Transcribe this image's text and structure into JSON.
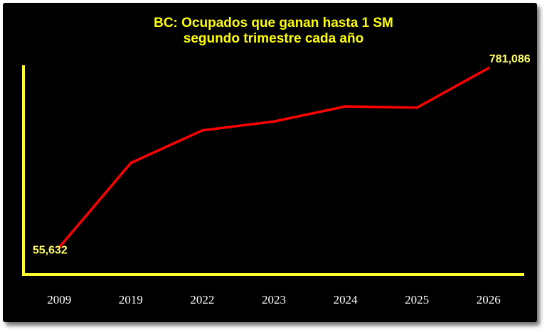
{
  "chart_data": {
    "type": "line",
    "title": "BC: Ocupados que ganan hasta 1 SM",
    "subtitle": "segundo trimestre cada año",
    "xlabel": "",
    "ylabel": "",
    "categories": [
      "2009",
      "2019",
      "2022",
      "2023",
      "2024",
      "2025",
      "2026"
    ],
    "series": [
      {
        "values": [
          55632,
          397000,
          529000,
          565000,
          626000,
          621000,
          781086
        ]
      }
    ],
    "data_labels": [
      {
        "category": "2009",
        "text": "55,632"
      },
      {
        "category": "2026",
        "text": "781,086"
      }
    ],
    "ylim": [
      0,
      781086
    ],
    "grid": false,
    "legend": "none",
    "colors": {
      "background": "#000000",
      "title": "#ffff00",
      "axis": "#ffff33",
      "line": "#ff0000",
      "tick_label": "#ffffff",
      "data_label": "#ffff66"
    }
  }
}
